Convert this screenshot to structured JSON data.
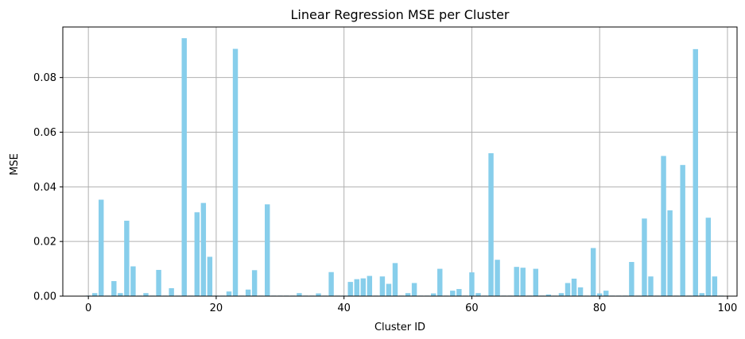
{
  "chart_data": {
    "type": "bar",
    "title": "Linear Regression MSE per Cluster",
    "xlabel": "Cluster ID",
    "ylabel": "MSE",
    "xlim": [
      -4,
      101.5
    ],
    "ylim": [
      0,
      0.0985
    ],
    "xticks": [
      0,
      20,
      40,
      60,
      80,
      100
    ],
    "xtick_labels": [
      "0",
      "20",
      "40",
      "60",
      "80",
      "100"
    ],
    "yticks": [
      0,
      0.02,
      0.04,
      0.06,
      0.08
    ],
    "ytick_labels": [
      "0.00",
      "0.02",
      "0.04",
      "0.06",
      "0.08"
    ],
    "grid": true,
    "bar_color": "#87ceeb",
    "x": [
      0,
      1,
      2,
      3,
      4,
      5,
      6,
      7,
      8,
      9,
      10,
      11,
      12,
      13,
      14,
      15,
      16,
      17,
      18,
      19,
      20,
      21,
      22,
      23,
      24,
      25,
      26,
      27,
      28,
      29,
      30,
      31,
      32,
      33,
      34,
      35,
      36,
      37,
      38,
      39,
      40,
      41,
      42,
      43,
      44,
      45,
      46,
      47,
      48,
      49,
      50,
      51,
      52,
      53,
      54,
      55,
      56,
      57,
      58,
      59,
      60,
      61,
      62,
      63,
      64,
      65,
      66,
      67,
      68,
      69,
      70,
      71,
      72,
      73,
      74,
      75,
      76,
      77,
      78,
      79,
      80,
      81,
      82,
      83,
      84,
      85,
      86,
      87,
      88,
      89,
      90,
      91,
      92,
      93,
      94,
      95,
      96,
      97,
      98,
      99
    ],
    "values": [
      0.0002,
      0.0011,
      0.0353,
      0.0002,
      0.0055,
      0.0011,
      0.0276,
      0.0109,
      0.0002,
      0.0011,
      0.0002,
      0.0096,
      0.0002,
      0.0029,
      0.0002,
      0.0944,
      0.0002,
      0.0307,
      0.0341,
      0.0144,
      0.0002,
      0.0002,
      0.0017,
      0.0905,
      0.0002,
      0.0024,
      0.0095,
      0.0002,
      0.0336,
      0.0002,
      0.0002,
      0.0002,
      0.0002,
      0.0011,
      0.0002,
      0.0002,
      0.001,
      0.0002,
      0.0088,
      0.0002,
      0.0002,
      0.0052,
      0.0062,
      0.0065,
      0.0074,
      0.0002,
      0.0072,
      0.0045,
      0.0121,
      0.0002,
      0.0011,
      0.0048,
      0.0002,
      0.0002,
      0.001,
      0.01,
      0.0002,
      0.002,
      0.0026,
      0.0002,
      0.0087,
      0.0011,
      0.0002,
      0.0523,
      0.0133,
      0.0002,
      0.0002,
      0.0107,
      0.0104,
      0.0002,
      0.01,
      0.0002,
      0.0006,
      0.0002,
      0.0011,
      0.0048,
      0.0064,
      0.0032,
      0.0002,
      0.0176,
      0.001,
      0.002,
      0.0002,
      0.0002,
      0.0002,
      0.0125,
      0.0002,
      0.0284,
      0.0072,
      0.0002,
      0.0513,
      0.0314,
      0.0002,
      0.048,
      0.0002,
      0.0904,
      0.0011,
      0.0287,
      0.0072,
      0.0002
    ]
  }
}
